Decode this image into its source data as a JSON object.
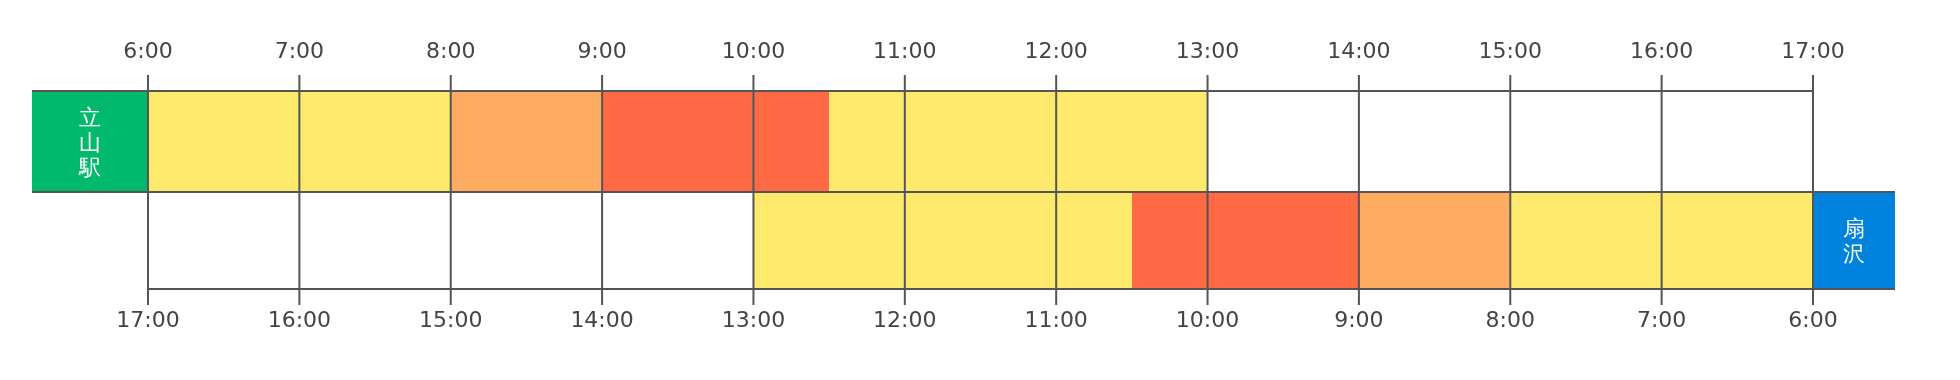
{
  "chart_data": [
    {
      "type": "bar",
      "orientation": "horizontal",
      "categories": [
        "立山駅"
      ],
      "series": [
        {
          "color": "#fde96c",
          "base": [
            6
          ],
          "values": [
            2
          ]
        },
        {
          "color": "#ffab62",
          "base": [
            8
          ],
          "values": [
            1
          ]
        },
        {
          "color": "#ff6a45",
          "base": [
            9
          ],
          "values": [
            1.5
          ]
        },
        {
          "color": "#fde96c",
          "base": [
            10.5
          ],
          "values": [
            2.5
          ]
        }
      ],
      "xlim": [
        6,
        17
      ],
      "xticks": [
        {
          "value": 6,
          "label": "6:00"
        },
        {
          "value": 7,
          "label": "7:00"
        },
        {
          "value": 8,
          "label": "8:00"
        },
        {
          "value": 9,
          "label": "9:00"
        },
        {
          "value": 10,
          "label": "10:00"
        },
        {
          "value": 11,
          "label": "11:00"
        },
        {
          "value": 12,
          "label": "12:00"
        },
        {
          "value": 13,
          "label": "13:00"
        },
        {
          "value": 14,
          "label": "14:00"
        },
        {
          "value": 15,
          "label": "15:00"
        },
        {
          "value": 16,
          "label": "16:00"
        },
        {
          "value": 17,
          "label": "17:00"
        }
      ],
      "grid": "x"
    },
    {
      "type": "bar",
      "orientation": "horizontal",
      "categories": [
        "扇沢"
      ],
      "series": [
        {
          "color": "#fde96c",
          "base": [
            6
          ],
          "values": [
            2
          ]
        },
        {
          "color": "#ffab62",
          "base": [
            8
          ],
          "values": [
            1
          ]
        },
        {
          "color": "#ff6a45",
          "base": [
            9
          ],
          "values": [
            1.5
          ]
        },
        {
          "color": "#fde96c",
          "base": [
            10.5
          ],
          "values": [
            2.5
          ]
        }
      ],
      "xlim": [
        17,
        6
      ],
      "xticks": [
        {
          "value": 17,
          "label": "17:00"
        },
        {
          "value": 16,
          "label": "16:00"
        },
        {
          "value": 15,
          "label": "15:00"
        },
        {
          "value": 14,
          "label": "14:00"
        },
        {
          "value": 13,
          "label": "13:00"
        },
        {
          "value": 12,
          "label": "12:00"
        },
        {
          "value": 11,
          "label": "11:00"
        },
        {
          "value": 10,
          "label": "10:00"
        },
        {
          "value": 9,
          "label": "9:00"
        },
        {
          "value": 8,
          "label": "8:00"
        },
        {
          "value": 7,
          "label": "7:00"
        },
        {
          "value": 6,
          "label": "6:00"
        }
      ],
      "grid": "x"
    }
  ]
}
